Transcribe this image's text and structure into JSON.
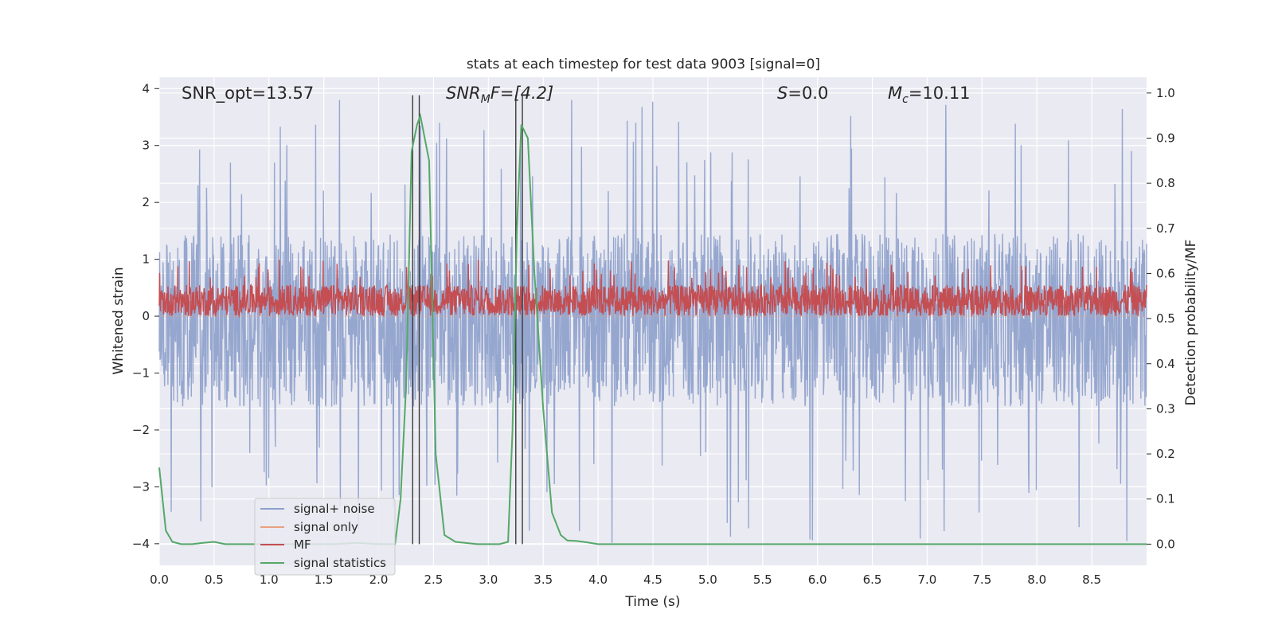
{
  "chart_data": {
    "type": "line",
    "title": "stats at each timestep for test data 9003 [signal=0]",
    "xlabel": "Time (s)",
    "ylabel": "Whitened strain",
    "ylabel_right": "Detection probability/MF",
    "xlim": [
      0.0,
      9.0
    ],
    "ylim": [
      -4.38,
      4.2
    ],
    "ylim_right": [
      -0.047,
      1.035
    ],
    "xticks": [
      "0.0",
      "0.5",
      "1.0",
      "1.5",
      "2.0",
      "2.5",
      "3.0",
      "3.5",
      "4.0",
      "4.5",
      "5.0",
      "5.5",
      "6.0",
      "6.5",
      "7.0",
      "7.5",
      "8.0",
      "8.5"
    ],
    "yticks": [
      "4",
      "3",
      "2",
      "1",
      "0",
      "−1",
      "−2",
      "−3",
      "−4"
    ],
    "yticks_right": [
      "1.0",
      "0.9",
      "0.8",
      "0.7",
      "0.6",
      "0.5",
      "0.4",
      "0.3",
      "0.2",
      "0.1",
      "0.0"
    ],
    "grid": true,
    "legend_position": "lower-left",
    "annotations": {
      "snr_opt": "SNR_opt=13.57",
      "snr_mf_sym": "SNR",
      "snr_mf_sub": "M",
      "snr_mf_rest": "F=[4.2]",
      "s_sym": "S",
      "s_rest": "=0.0",
      "mc_sym": "M",
      "mc_sub": "c",
      "mc_rest": "=10.11"
    },
    "vertical_lines_x": [
      2.31,
      2.37,
      3.25,
      3.31
    ],
    "series": [
      {
        "name": "signal+ noise",
        "color": "#8da0cb",
        "style": "noise",
        "band": [
          -1.6,
          1.45
        ],
        "peak_range": [
          -4.0,
          3.85
        ]
      },
      {
        "name": "signal only",
        "color": "#e8a17f",
        "style": "flat",
        "values": 0.0
      },
      {
        "name": "MF",
        "color": "#c44e52",
        "style": "noise",
        "band": [
          0.0,
          0.55
        ],
        "peak_range": [
          0.0,
          1.0
        ]
      },
      {
        "name": "signal statistics",
        "color": "#55a868",
        "axis": "right",
        "x": [
          0.0,
          0.06,
          0.12,
          0.2,
          0.3,
          0.4,
          0.5,
          0.6,
          0.8,
          1.0,
          1.2,
          1.4,
          1.6,
          1.8,
          2.0,
          2.15,
          2.2,
          2.25,
          2.3,
          2.35,
          2.38,
          2.42,
          2.46,
          2.52,
          2.6,
          2.7,
          2.9,
          3.1,
          3.18,
          3.22,
          3.26,
          3.3,
          3.32,
          3.36,
          3.42,
          3.5,
          3.58,
          3.66,
          3.72,
          3.8,
          3.9,
          4.0,
          5.0,
          6.0,
          7.0,
          8.0,
          9.0
        ],
        "y": [
          0.17,
          0.03,
          0.005,
          0.0,
          0.0,
          0.003,
          0.005,
          0.0,
          0.0,
          0.0,
          0.0,
          0.0,
          0.0,
          0.003,
          0.0,
          0.0,
          0.1,
          0.35,
          0.87,
          0.93,
          0.95,
          0.9,
          0.85,
          0.2,
          0.02,
          0.005,
          0.0,
          0.0,
          0.005,
          0.25,
          0.7,
          0.93,
          0.92,
          0.9,
          0.6,
          0.3,
          0.07,
          0.02,
          0.008,
          0.007,
          0.004,
          0.0,
          0.0,
          0.0,
          0.0,
          0.0,
          0.0
        ]
      }
    ]
  }
}
